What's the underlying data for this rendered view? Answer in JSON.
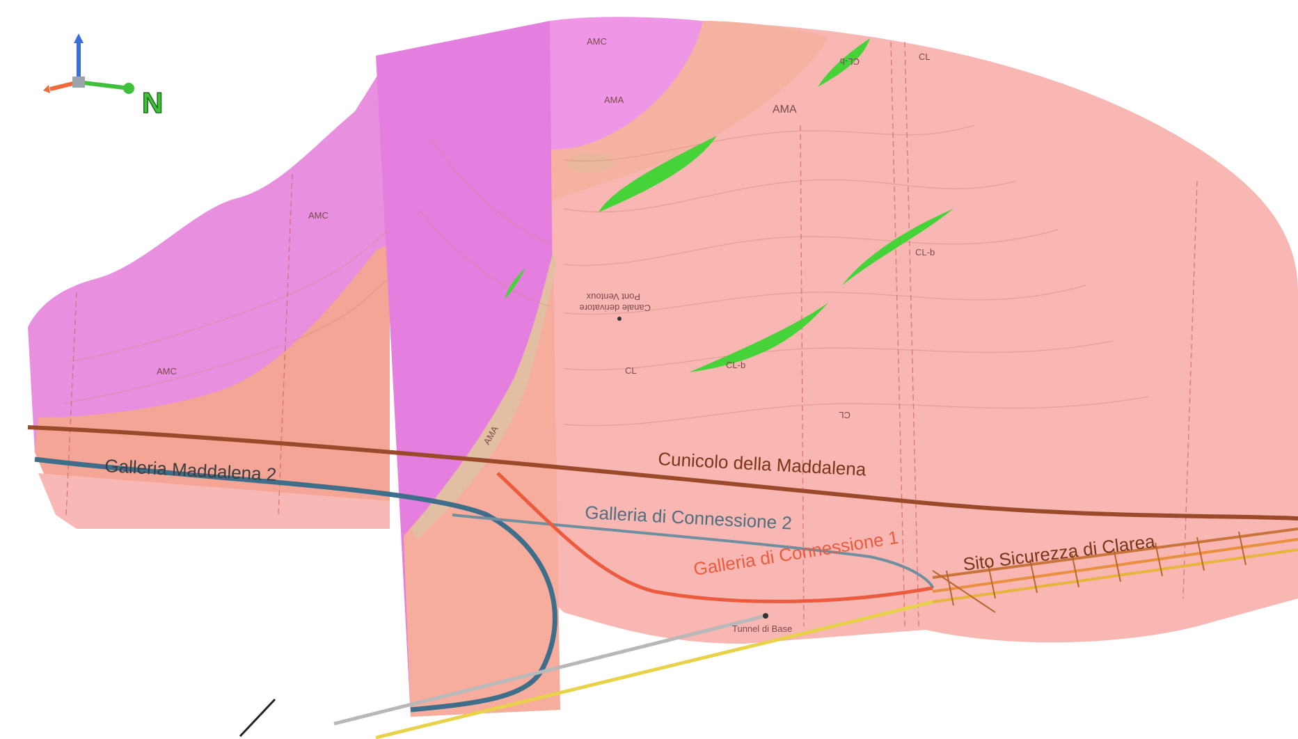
{
  "compass": {
    "north_label": "N",
    "icon": "axis-gizmo-icon"
  },
  "tunnels": {
    "maddalena_2": "Galleria Maddalena 2",
    "cunicolo": "Cunicolo della Maddalena",
    "connessione_2": "Galleria di Connessione 2",
    "connessione_1": "Galleria di Connessione 1",
    "sito_clarea": "Sito Sicurezza di Clarea",
    "tunnel_base": "Tunnel di Base"
  },
  "geology_units": {
    "amc_top": "AMC",
    "amc_left": "AMC",
    "amc_lower": "AMC",
    "ama_top": "AMA",
    "ama_right": "AMA",
    "ama_strip": "AMA",
    "cl_top": "CL",
    "cl_mid": "CL",
    "clb_right": "CL-b",
    "clb_lower": "CL-b",
    "clb_top": "CL-b",
    "cl_small": "CL"
  },
  "annotations": {
    "canale_line1": "Canale derivatore",
    "canale_line2": "Pont Ventoux"
  },
  "colors": {
    "amc_magenta": "#e58be0",
    "amc_pink": "#f2a6dc",
    "ama_salmon": "#f6ac9c",
    "cl_pink": "#f8b7b3",
    "green_lens": "#46d33a",
    "cunicolo_brown": "#9a4a2a",
    "maddalena_blue": "#3f6e8a",
    "connessione_red": "#ec5b3e",
    "base_yellow": "#e8d24a"
  }
}
